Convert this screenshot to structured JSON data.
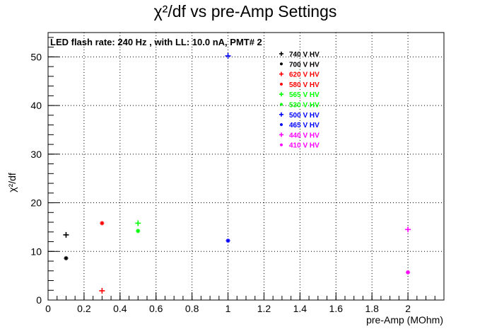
{
  "chart_data": {
    "type": "scatter",
    "title": "χ²/df vs pre-Amp Settings",
    "xlabel": "pre-Amp (MOhm)",
    "ylabel": "χ²/df",
    "annotation": "LED flash rate: 240 Hz , with LL: 10.0 nA, PMT# 2",
    "xlim": [
      0,
      2.2
    ],
    "ylim": [
      0,
      55
    ],
    "grid": true,
    "legend_position": "top-right",
    "x_ticks": [
      "0",
      "0.2",
      "0.4",
      "0.6",
      "0.8",
      "1",
      "1.2",
      "1.4",
      "1.6",
      "1.8",
      "2"
    ],
    "y_ticks": [
      "0",
      "10",
      "20",
      "30",
      "40",
      "50"
    ],
    "series": [
      {
        "name": "740 V HV",
        "color": "#000000",
        "marker": "plus",
        "points": [
          [
            0.1,
            13.4
          ]
        ]
      },
      {
        "name": "700 V HV",
        "color": "#000000",
        "marker": "star",
        "points": [
          [
            0.1,
            8.6
          ]
        ]
      },
      {
        "name": "620 V HV",
        "color": "#ff0000",
        "marker": "plus",
        "points": [
          [
            0.3,
            1.9
          ]
        ]
      },
      {
        "name": "580 V HV",
        "color": "#ff0000",
        "marker": "star",
        "points": [
          [
            0.3,
            15.8
          ]
        ]
      },
      {
        "name": "565 V HV",
        "color": "#00ff00",
        "marker": "plus",
        "points": [
          [
            0.5,
            15.8
          ]
        ]
      },
      {
        "name": "530 V HV",
        "color": "#00ff00",
        "marker": "star",
        "points": [
          [
            0.5,
            14.2
          ]
        ]
      },
      {
        "name": "500 V HV",
        "color": "#0000ff",
        "marker": "plus",
        "points": [
          [
            1.0,
            50.2
          ]
        ]
      },
      {
        "name": "465 V HV",
        "color": "#0000ff",
        "marker": "star",
        "points": [
          [
            1.0,
            12.2
          ]
        ]
      },
      {
        "name": "440 V HV",
        "color": "#ff00ff",
        "marker": "plus",
        "points": [
          [
            2.0,
            14.5
          ]
        ]
      },
      {
        "name": "410 V HV",
        "color": "#ff00ff",
        "marker": "star",
        "points": [
          [
            2.0,
            5.7
          ]
        ]
      }
    ]
  }
}
